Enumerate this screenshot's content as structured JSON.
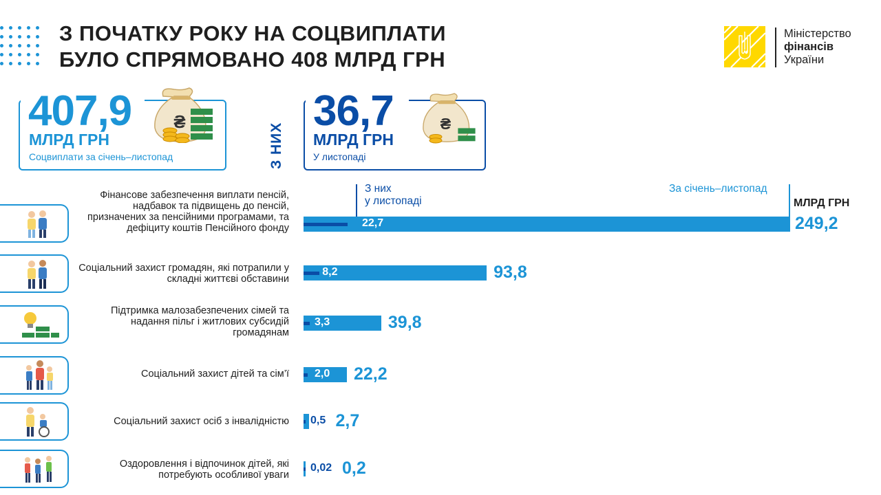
{
  "header": {
    "title_line1": "З ПОЧАТКУ РОКУ НА СОЦВИПЛАТИ",
    "title_line2": "БУЛО СПРЯМОВАНО 408 МЛРД ГРН"
  },
  "logo": {
    "line1": "Міністерство",
    "line2": "фінансів",
    "line3": "України",
    "emblem_icon": "trident-icon",
    "emblem_color": "#ffd800"
  },
  "summary": {
    "total_value": "407,9",
    "total_unit": "МЛРД ГРН",
    "total_caption": "Соцвиплати за січень–листопад",
    "of_them": "З НИХ",
    "month_value": "36,7",
    "month_unit": "МЛРД ГРН",
    "month_caption": "У листопаді",
    "icon": "money-bag-icon"
  },
  "colors": {
    "total": "#1c94d6",
    "month": "#0a4da6",
    "text": "#1f1f1f"
  },
  "chart_data": {
    "type": "bar",
    "orientation": "horizontal",
    "unit_label": "МЛРД ГРН",
    "month_legend": "З них у листопаді",
    "month_legend_line1": "З них",
    "month_legend_line2": "у листопаді",
    "total_legend": "За січень–листопад",
    "categories": [
      "Фінансове забезпечення виплати пенсій, надбавок та підвищень до пенсій, призначених за пенсійними програмами, та дефіциту коштів Пенсійного фонду",
      "Соціальний захист громадян, які потрапили у складні життєві обставини",
      "Підтримка малозабезпечених сімей та надання пільг і житлових субсидій громадянам",
      "Соціальний захист дітей та сім’ї",
      "Соціальний захист осіб з інвалідністю",
      "Оздоровлення і відпочинок дітей, які потребують особливої уваги"
    ],
    "series": [
      {
        "name": "За січень–листопад",
        "values": [
          249.2,
          93.8,
          39.8,
          22.2,
          2.7,
          0.2
        ],
        "labels": [
          "249,2",
          "93,8",
          "39,8",
          "22,2",
          "2,7",
          "0,2"
        ]
      },
      {
        "name": "З них у листопаді",
        "values": [
          22.7,
          8.2,
          3.3,
          2.0,
          0.5,
          0.02
        ],
        "labels": [
          "22,7",
          "8,2",
          "3,3",
          "2,0",
          "0,5",
          "0,02"
        ]
      }
    ],
    "category_icons": [
      "elderly-couple-icon",
      "people-talking-icon",
      "lightbulb-money-icon",
      "family-icon",
      "wheelchair-icon",
      "children-playing-icon"
    ]
  }
}
